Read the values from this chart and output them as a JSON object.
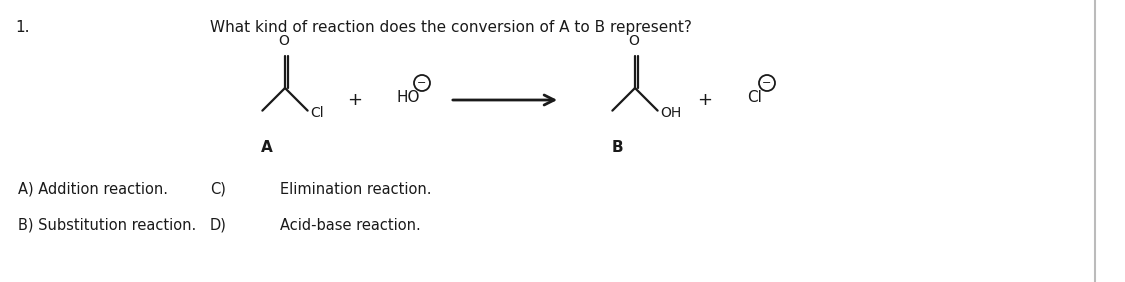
{
  "question_number": "1.",
  "question_text": "What kind of reaction does the conversion of A to B represent?",
  "bg_color": "#ffffff",
  "text_color": "#1a1a1a",
  "answer_A": "A) Addition reaction.",
  "answer_B": "B) Substitution reaction.",
  "answer_C": "C)",
  "answer_D": "D)",
  "answer_C_text": "Elimination reaction.",
  "answer_D_text": "Acid-base reaction.",
  "label_A": "A",
  "label_B": "B"
}
